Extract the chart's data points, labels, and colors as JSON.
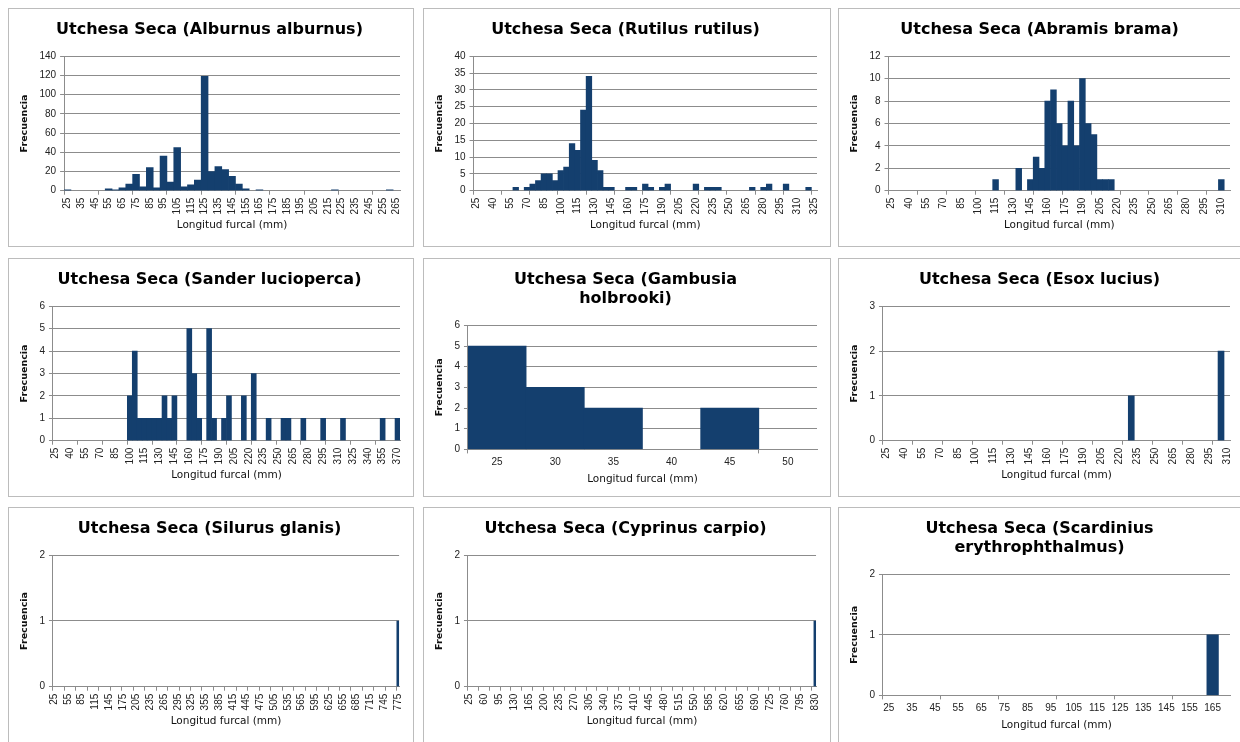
{
  "chart_data": [
    {
      "type": "bar",
      "title": "Utchesa Seca (Alburnus alburnus)",
      "xlabel": "Longitud furcal (mm)",
      "ylabel": "Frecuencia",
      "categories": [
        "25",
        null,
        "35",
        null,
        "45",
        null,
        "55",
        null,
        "65",
        null,
        "75",
        null,
        "85",
        null,
        "95",
        null,
        "105",
        null,
        "115",
        null,
        "125",
        null,
        "135",
        null,
        "145",
        null,
        "155",
        null,
        "165",
        null,
        "175",
        null,
        "185",
        null,
        "195",
        null,
        "205",
        null,
        "215",
        null,
        "225",
        null,
        "235",
        null,
        "245",
        null,
        "255",
        null,
        "265"
      ],
      "values": [
        1,
        null,
        null,
        null,
        null,
        null,
        2,
        1,
        3,
        7,
        17,
        4,
        24,
        3,
        36,
        9,
        45,
        4,
        6,
        11,
        119,
        20,
        25,
        22,
        15,
        7,
        2,
        null,
        1,
        null,
        null,
        null,
        null,
        null,
        null,
        null,
        null,
        null,
        null,
        1,
        null,
        null,
        null,
        null,
        null,
        null,
        null,
        1,
        null
      ],
      "color": "#143f6e",
      "ylim": [
        0,
        140
      ],
      "yticks": [
        0,
        20,
        40,
        60,
        80,
        100,
        120,
        140
      ],
      "grid": "y"
    },
    {
      "type": "bar",
      "title": "Utchesa Seca (Rutilus rutilus)",
      "xlabel": "Longitud furcal (mm)",
      "ylabel": "Frecuencia",
      "categories": [
        "25",
        null,
        null,
        "40",
        null,
        null,
        "55",
        null,
        null,
        "70",
        null,
        null,
        "85",
        null,
        null,
        "100",
        null,
        null,
        "115",
        null,
        null,
        "130",
        null,
        null,
        "145",
        null,
        null,
        "160",
        null,
        null,
        "175",
        null,
        null,
        "190",
        null,
        null,
        "205",
        null,
        null,
        "220",
        null,
        null,
        "235",
        null,
        null,
        "250",
        null,
        null,
        "265",
        null,
        null,
        "280",
        null,
        null,
        "295",
        null,
        null,
        "310",
        null,
        null,
        "325"
      ],
      "values": [
        null,
        null,
        null,
        null,
        null,
        null,
        null,
        1,
        null,
        1,
        2,
        3,
        5,
        5,
        3,
        6,
        7,
        14,
        12,
        24,
        34,
        9,
        6,
        1,
        1,
        null,
        null,
        1,
        1,
        null,
        2,
        1,
        null,
        1,
        2,
        null,
        null,
        null,
        null,
        2,
        null,
        1,
        1,
        1,
        null,
        null,
        null,
        null,
        null,
        1,
        null,
        1,
        2,
        null,
        null,
        2,
        null,
        null,
        null,
        1,
        null
      ],
      "color": "#143f6e",
      "ylim": [
        0,
        40
      ],
      "yticks": [
        0,
        5,
        10,
        15,
        20,
        25,
        30,
        35,
        40
      ],
      "grid": "y"
    },
    {
      "type": "bar",
      "title": "Utchesa Seca (Abramis brama)",
      "xlabel": "Longitud furcal (mm)",
      "ylabel": "Frecuencia",
      "categories": [
        "25",
        null,
        null,
        "40",
        null,
        null,
        "55",
        null,
        null,
        "70",
        null,
        null,
        "85",
        null,
        null,
        "100",
        null,
        null,
        "115",
        null,
        null,
        "130",
        null,
        null,
        "145",
        null,
        null,
        "160",
        null,
        null,
        "175",
        null,
        null,
        "190",
        null,
        null,
        "205",
        null,
        null,
        "220",
        null,
        null,
        "235",
        null,
        null,
        "250",
        null,
        null,
        "265",
        null,
        null,
        "280",
        null,
        null,
        "295",
        null,
        null,
        "310",
        null
      ],
      "values": [
        null,
        null,
        null,
        null,
        null,
        null,
        null,
        null,
        null,
        null,
        null,
        null,
        null,
        null,
        null,
        null,
        null,
        null,
        1,
        null,
        null,
        null,
        2,
        null,
        1,
        3,
        2,
        8,
        9,
        6,
        4,
        8,
        4,
        10,
        6,
        5,
        1,
        1,
        1,
        null,
        null,
        null,
        null,
        null,
        null,
        null,
        null,
        null,
        null,
        null,
        null,
        null,
        null,
        null,
        null,
        null,
        null,
        1,
        null
      ],
      "color": "#143f6e",
      "ylim": [
        0,
        12
      ],
      "yticks": [
        0,
        2,
        4,
        6,
        8,
        10,
        12
      ],
      "grid": "y"
    },
    {
      "type": "bar",
      "title": "Utchesa Seca (Sander lucioperca)",
      "xlabel": "Longitud furcal (mm)",
      "ylabel": "Frecuencia",
      "categories": [
        "25",
        null,
        null,
        "40",
        null,
        null,
        "55",
        null,
        null,
        "70",
        null,
        null,
        "85",
        null,
        null,
        "100",
        null,
        null,
        "115",
        null,
        null,
        "130",
        null,
        null,
        "145",
        null,
        null,
        "160",
        null,
        null,
        "175",
        null,
        null,
        "190",
        null,
        null,
        "205",
        null,
        null,
        "220",
        null,
        null,
        "235",
        null,
        null,
        "250",
        null,
        null,
        "265",
        null,
        null,
        "280",
        null,
        null,
        "295",
        null,
        null,
        "310",
        null,
        null,
        "325",
        null,
        null,
        "340",
        null,
        null,
        "355",
        null,
        null,
        "370"
      ],
      "values": [
        null,
        null,
        null,
        null,
        null,
        null,
        null,
        null,
        null,
        null,
        null,
        null,
        null,
        null,
        null,
        2,
        4,
        1,
        1,
        1,
        1,
        1,
        2,
        1,
        2,
        null,
        null,
        5,
        3,
        1,
        null,
        5,
        1,
        null,
        1,
        2,
        null,
        null,
        2,
        null,
        3,
        null,
        null,
        1,
        null,
        null,
        1,
        1,
        null,
        null,
        1,
        null,
        null,
        null,
        1,
        null,
        null,
        null,
        1,
        null,
        null,
        null,
        null,
        null,
        null,
        null,
        1,
        null,
        null,
        1
      ],
      "color": "#143f6e",
      "ylim": [
        0,
        6
      ],
      "yticks": [
        0,
        1,
        2,
        3,
        4,
        5,
        6
      ],
      "grid": "y"
    },
    {
      "type": "bar",
      "title": "Utchesa Seca (Gambusia holbrooki)",
      "xlabel": "Longitud furcal (mm)",
      "ylabel": "Frecuencia",
      "categories": [
        "25",
        "30",
        "35",
        "40",
        "45",
        "50"
      ],
      "values": [
        5,
        3,
        2,
        null,
        2,
        null
      ],
      "color": "#143f6e",
      "ylim": [
        0,
        6
      ],
      "yticks": [
        0,
        1,
        2,
        3,
        4,
        5,
        6
      ],
      "grid": "y"
    },
    {
      "type": "bar",
      "title": "Utchesa Seca (Esox lucius)",
      "xlabel": "Longitud furcal (mm)",
      "ylabel": "Frecuencia",
      "categories": [
        "25",
        null,
        null,
        "40",
        null,
        null,
        "55",
        null,
        null,
        "70",
        null,
        null,
        "85",
        null,
        null,
        "100",
        null,
        null,
        "115",
        null,
        null,
        "130",
        null,
        null,
        "145",
        null,
        null,
        "160",
        null,
        null,
        "175",
        null,
        null,
        "190",
        null,
        null,
        "205",
        null,
        null,
        "220",
        null,
        null,
        "235",
        null,
        null,
        "250",
        null,
        null,
        "265",
        null,
        null,
        "280",
        null,
        null,
        "295",
        null,
        null,
        "310"
      ],
      "values": [
        null,
        null,
        null,
        null,
        null,
        null,
        null,
        null,
        null,
        null,
        null,
        null,
        null,
        null,
        null,
        null,
        null,
        null,
        null,
        null,
        null,
        null,
        null,
        null,
        null,
        null,
        null,
        null,
        null,
        null,
        null,
        null,
        null,
        null,
        null,
        null,
        null,
        null,
        null,
        null,
        null,
        1,
        null,
        null,
        null,
        null,
        null,
        null,
        null,
        null,
        null,
        null,
        null,
        null,
        null,
        null,
        2,
        null
      ],
      "color": "#143f6e",
      "ylim": [
        0,
        3
      ],
      "yticks": [
        0,
        1,
        2,
        3
      ],
      "grid": "y"
    },
    {
      "type": "bar",
      "title": "Utchesa Seca (Silurus glanis)",
      "xlabel": "Longitud furcal (mm)",
      "ylabel": "Frecuencia",
      "categories": [
        "25",
        null,
        null,
        null,
        null,
        null,
        "55",
        null,
        null,
        null,
        null,
        null,
        "85",
        null,
        null,
        null,
        null,
        null,
        "115",
        null,
        null,
        null,
        null,
        null,
        "145",
        null,
        null,
        null,
        null,
        null,
        "175",
        null,
        null,
        null,
        null,
        null,
        "205",
        null,
        null,
        null,
        null,
        null,
        "235",
        null,
        null,
        null,
        null,
        null,
        "265",
        null,
        null,
        null,
        null,
        null,
        "295",
        null,
        null,
        null,
        null,
        null,
        "325",
        null,
        null,
        null,
        null,
        null,
        "355",
        null,
        null,
        null,
        null,
        null,
        "385",
        null,
        null,
        null,
        null,
        null,
        "415",
        null,
        null,
        null,
        null,
        null,
        "445",
        null,
        null,
        null,
        null,
        null,
        "475",
        null,
        null,
        null,
        null,
        null,
        "505",
        null,
        null,
        null,
        null,
        null,
        "535",
        null,
        null,
        null,
        null,
        null,
        "565",
        null,
        null,
        null,
        null,
        null,
        "595",
        null,
        null,
        null,
        null,
        null,
        "625",
        null,
        null,
        null,
        null,
        null,
        "655",
        null,
        null,
        null,
        null,
        null,
        "685",
        null,
        null,
        null,
        null,
        null,
        "715",
        null,
        null,
        null,
        null,
        null,
        "745",
        null,
        null,
        null,
        null,
        null,
        "775"
      ],
      "values": [
        null,
        null,
        null,
        null,
        null,
        null,
        null,
        null,
        null,
        null,
        null,
        null,
        null,
        null,
        null,
        null,
        null,
        null,
        null,
        null,
        null,
        null,
        null,
        null,
        null,
        null,
        null,
        null,
        null,
        null,
        null,
        null,
        null,
        null,
        null,
        null,
        null,
        null,
        null,
        null,
        null,
        null,
        null,
        null,
        null,
        null,
        null,
        null,
        null,
        null,
        null,
        null,
        null,
        null,
        null,
        null,
        null,
        null,
        null,
        null,
        null,
        null,
        null,
        null,
        null,
        null,
        null,
        null,
        null,
        null,
        null,
        null,
        null,
        null,
        null,
        null,
        null,
        null,
        null,
        null,
        null,
        null,
        null,
        null,
        null,
        null,
        null,
        null,
        null,
        null,
        null,
        null,
        null,
        null,
        null,
        null,
        null,
        null,
        null,
        null,
        null,
        null,
        null,
        null,
        null,
        null,
        null,
        null,
        null,
        null,
        null,
        null,
        null,
        null,
        null,
        null,
        null,
        null,
        null,
        null,
        null,
        null,
        null,
        null,
        null,
        null,
        null,
        null,
        null,
        null,
        null,
        null,
        null,
        null,
        null,
        null,
        null,
        null,
        null,
        null,
        null,
        null,
        null,
        null,
        null,
        null,
        null,
        null,
        null,
        null,
        1
      ],
      "color": "#143f6e",
      "ylim": [
        0,
        2
      ],
      "yticks": [
        0,
        1,
        2
      ],
      "grid": "y"
    },
    {
      "type": "bar",
      "title": "Utchesa Seca (Cyprinus carpio)",
      "xlabel": "Longitud furcal (mm)",
      "ylabel": "Frecuencia",
      "categories": [
        "25",
        null,
        null,
        null,
        null,
        null,
        null,
        "60",
        null,
        null,
        null,
        null,
        null,
        null,
        "95",
        null,
        null,
        null,
        null,
        null,
        null,
        "130",
        null,
        null,
        null,
        null,
        null,
        null,
        "165",
        null,
        null,
        null,
        null,
        null,
        null,
        "200",
        null,
        null,
        null,
        null,
        null,
        null,
        "235",
        null,
        null,
        null,
        null,
        null,
        null,
        "270",
        null,
        null,
        null,
        null,
        null,
        null,
        "305",
        null,
        null,
        null,
        null,
        null,
        null,
        "340",
        null,
        null,
        null,
        null,
        null,
        null,
        "375",
        null,
        null,
        null,
        null,
        null,
        null,
        "410",
        null,
        null,
        null,
        null,
        null,
        null,
        "445",
        null,
        null,
        null,
        null,
        null,
        null,
        "480",
        null,
        null,
        null,
        null,
        null,
        null,
        "515",
        null,
        null,
        null,
        null,
        null,
        null,
        "550",
        null,
        null,
        null,
        null,
        null,
        null,
        "585",
        null,
        null,
        null,
        null,
        null,
        null,
        "620",
        null,
        null,
        null,
        null,
        null,
        null,
        "655",
        null,
        null,
        null,
        null,
        null,
        null,
        "690",
        null,
        null,
        null,
        null,
        null,
        null,
        "725",
        null,
        null,
        null,
        null,
        null,
        null,
        "760",
        null,
        null,
        null,
        null,
        null,
        null,
        "795",
        null,
        null,
        null,
        null,
        null,
        null,
        "830"
      ],
      "values": [
        null,
        null,
        null,
        null,
        null,
        null,
        null,
        null,
        null,
        null,
        null,
        null,
        null,
        null,
        null,
        null,
        null,
        null,
        null,
        null,
        null,
        null,
        null,
        null,
        null,
        null,
        null,
        null,
        null,
        null,
        null,
        null,
        null,
        null,
        null,
        null,
        null,
        null,
        null,
        null,
        null,
        null,
        null,
        null,
        null,
        null,
        null,
        null,
        null,
        null,
        null,
        null,
        null,
        null,
        null,
        null,
        null,
        null,
        null,
        null,
        null,
        null,
        null,
        null,
        null,
        null,
        null,
        null,
        null,
        null,
        null,
        null,
        null,
        null,
        null,
        null,
        null,
        null,
        null,
        null,
        null,
        null,
        null,
        null,
        null,
        null,
        null,
        null,
        null,
        null,
        null,
        null,
        null,
        null,
        null,
        null,
        null,
        null,
        null,
        null,
        null,
        null,
        null,
        null,
        null,
        null,
        null,
        null,
        null,
        null,
        null,
        null,
        null,
        null,
        null,
        null,
        null,
        null,
        null,
        null,
        null,
        null,
        null,
        null,
        null,
        null,
        null,
        null,
        null,
        null,
        null,
        null,
        null,
        null,
        null,
        null,
        null,
        null,
        null,
        null,
        null,
        null,
        null,
        null,
        null,
        null,
        null,
        null,
        null,
        null,
        null,
        null,
        null,
        null,
        null,
        null,
        null,
        null,
        null,
        null,
        null,
        1
      ],
      "color": "#143f6e",
      "ylim": [
        0,
        2
      ],
      "yticks": [
        0,
        1,
        2
      ],
      "grid": "y"
    },
    {
      "type": "bar",
      "title": "Utchesa Seca (Scardinius erythrophthalmus)",
      "xlabel": "Longitud furcal (mm)",
      "ylabel": "Frecuencia",
      "categories": [
        "25",
        null,
        "35",
        null,
        "45",
        null,
        "55",
        null,
        "65",
        null,
        "75",
        null,
        "85",
        null,
        "95",
        null,
        "105",
        null,
        "115",
        null,
        "125",
        null,
        "135",
        null,
        "145",
        null,
        "155",
        null,
        "165",
        null
      ],
      "values": [
        null,
        null,
        null,
        null,
        null,
        null,
        null,
        null,
        null,
        null,
        null,
        null,
        null,
        null,
        null,
        null,
        null,
        null,
        null,
        null,
        null,
        null,
        null,
        null,
        null,
        null,
        null,
        null,
        1,
        null
      ],
      "color": "#143f6e",
      "ylim": [
        0,
        2
      ],
      "yticks": [
        0,
        1,
        2
      ],
      "grid": "y"
    }
  ]
}
